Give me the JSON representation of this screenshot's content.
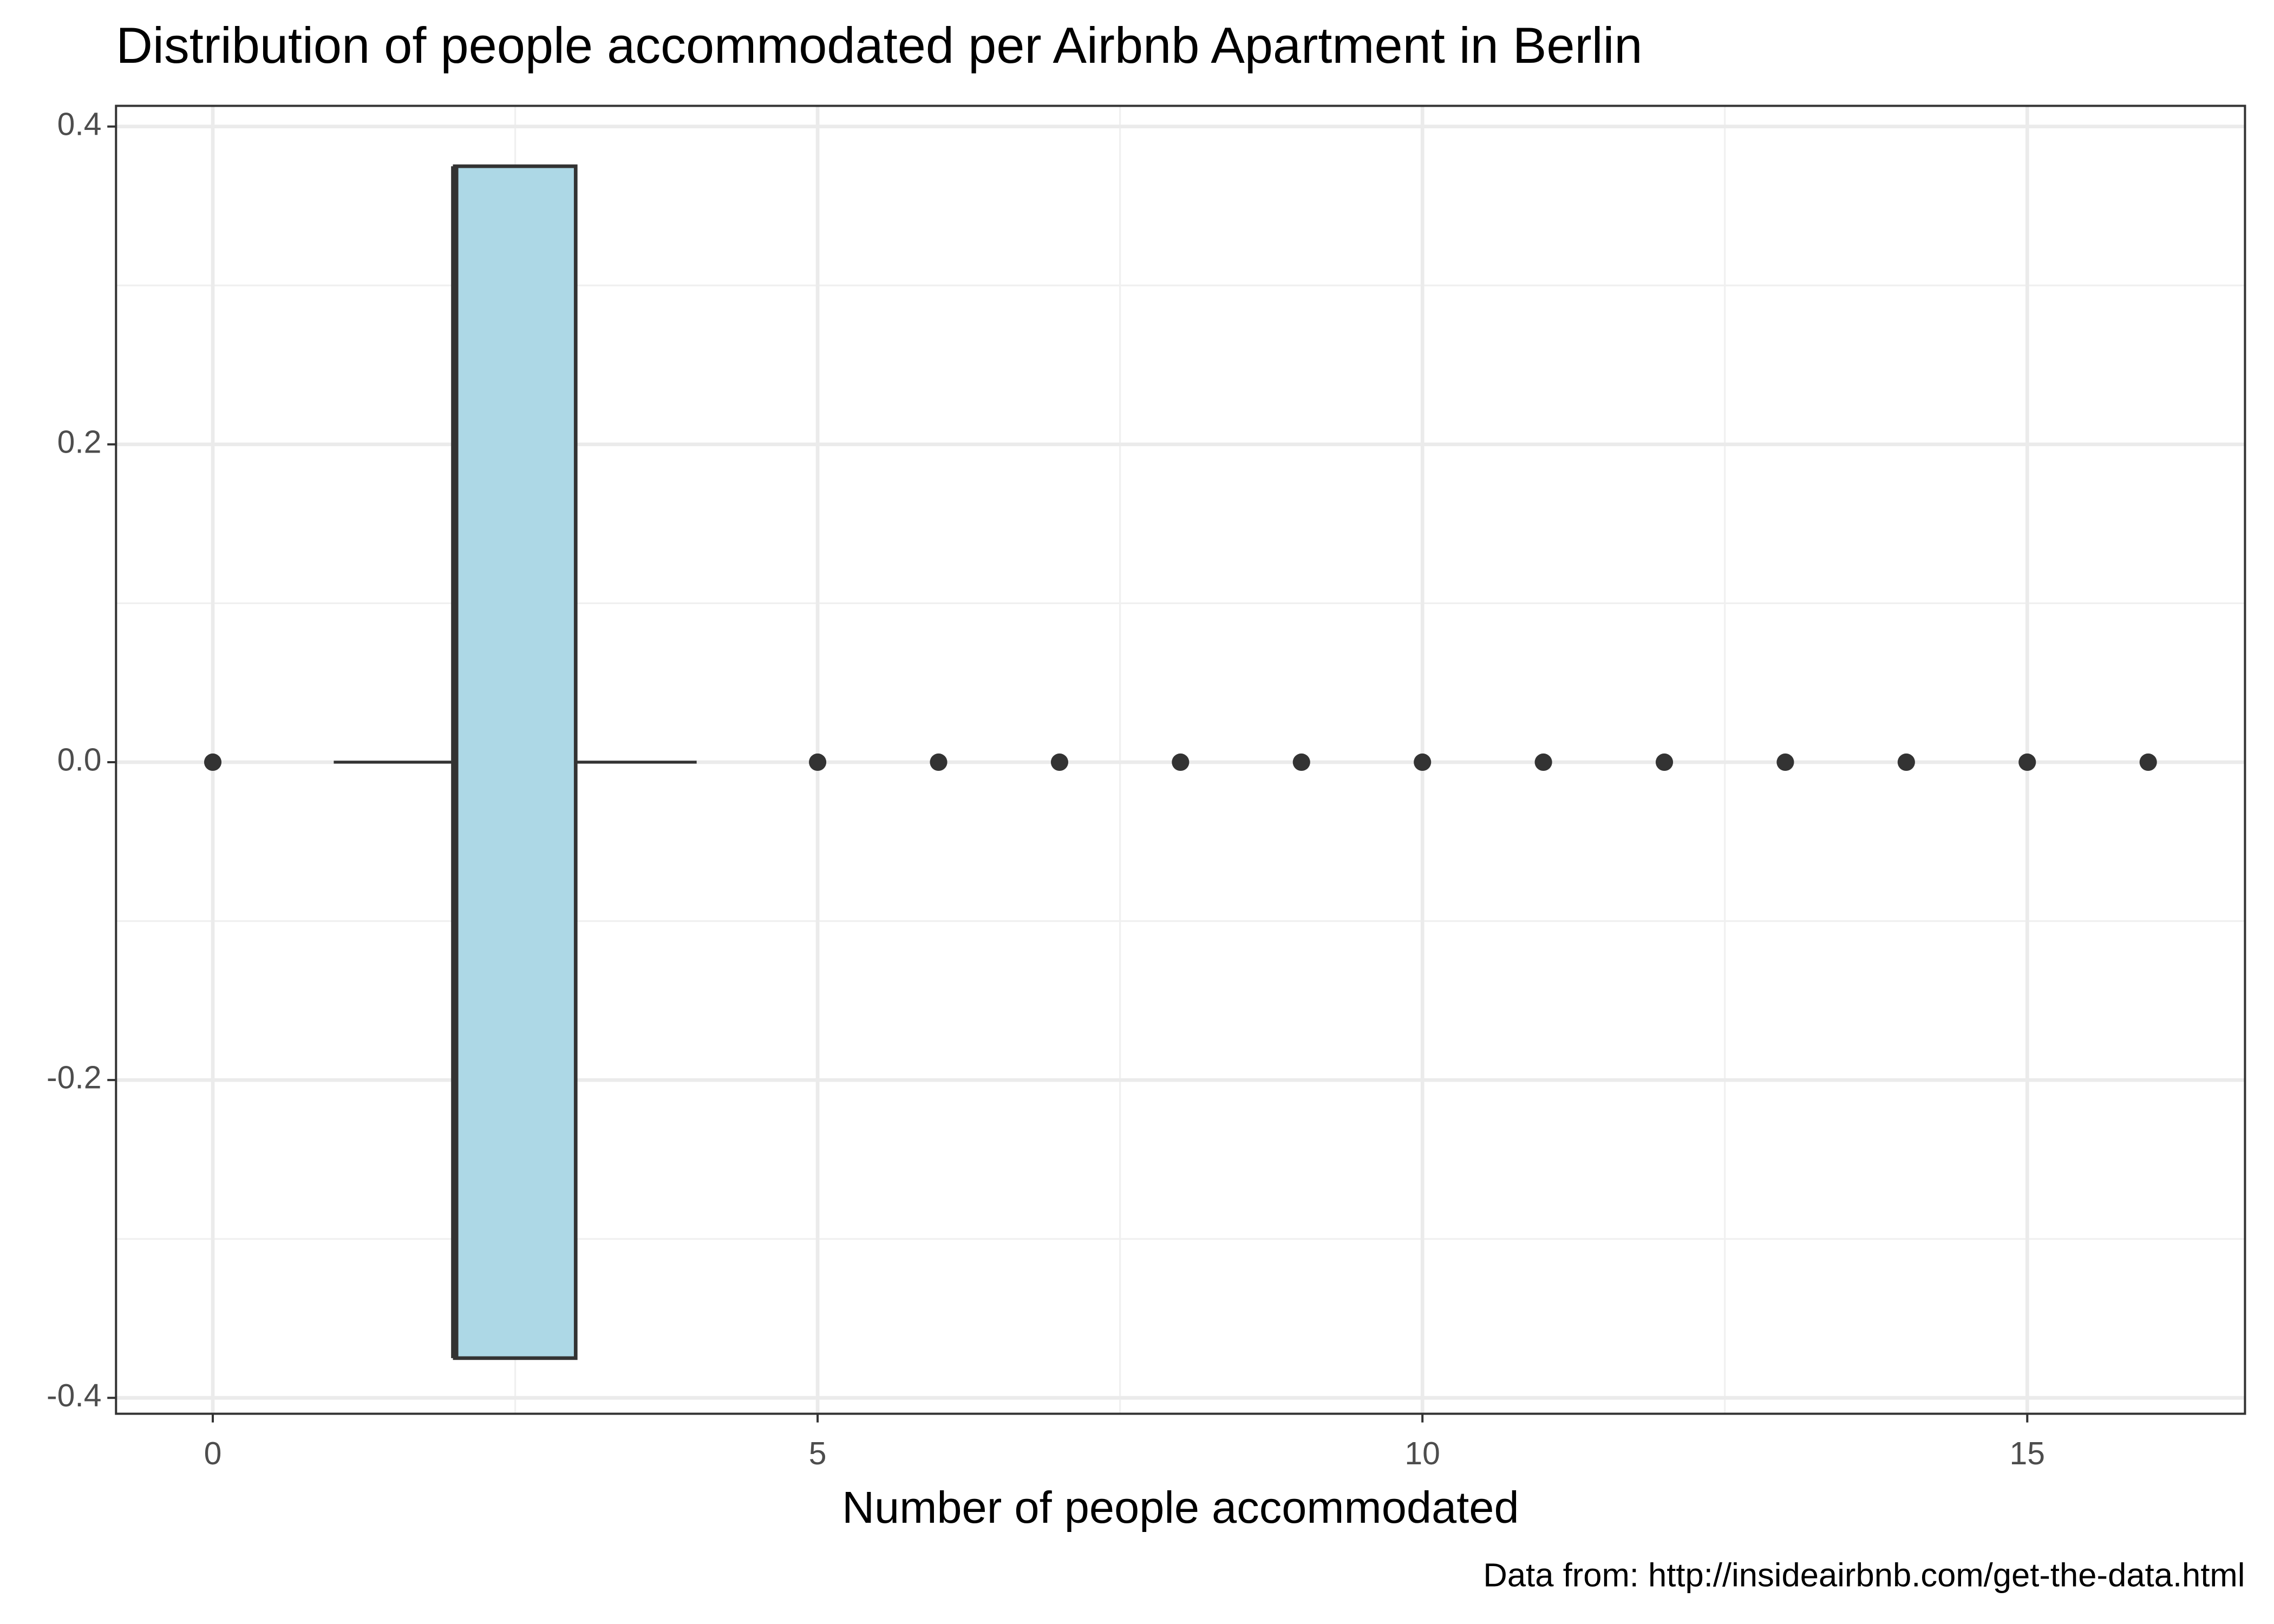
{
  "chart_data": {
    "type": "boxplot",
    "title": "Distribution of people accommodated per Airbnb Apartment in Berlin",
    "x_label": "Number of people accommodated",
    "caption": "Data from: http://insideairbnb.com/get-the-data.html",
    "color": "#add8e6",
    "box": {
      "min": 1,
      "q1": 2,
      "median": 2,
      "q3": 3,
      "max": 4,
      "outliers": [
        0,
        5,
        6,
        7,
        8,
        9,
        10,
        11,
        12,
        13,
        14,
        15,
        16
      ],
      "y": 0,
      "ymin": -0.375,
      "ymax": 0.375
    },
    "xlim": [
      -0.8,
      16.8
    ],
    "xticks": [
      0,
      5,
      10,
      15
    ],
    "ylim": [
      -0.41,
      0.413
    ],
    "yticks": [
      {
        "value": -0.4,
        "label": "-0.4"
      },
      {
        "value": -0.2,
        "label": "-0.2"
      },
      {
        "value": 0,
        "label": "0.0"
      },
      {
        "value": 0.2,
        "label": "0.2"
      },
      {
        "value": 0.4,
        "label": "0.4"
      }
    ],
    "grid": true
  }
}
